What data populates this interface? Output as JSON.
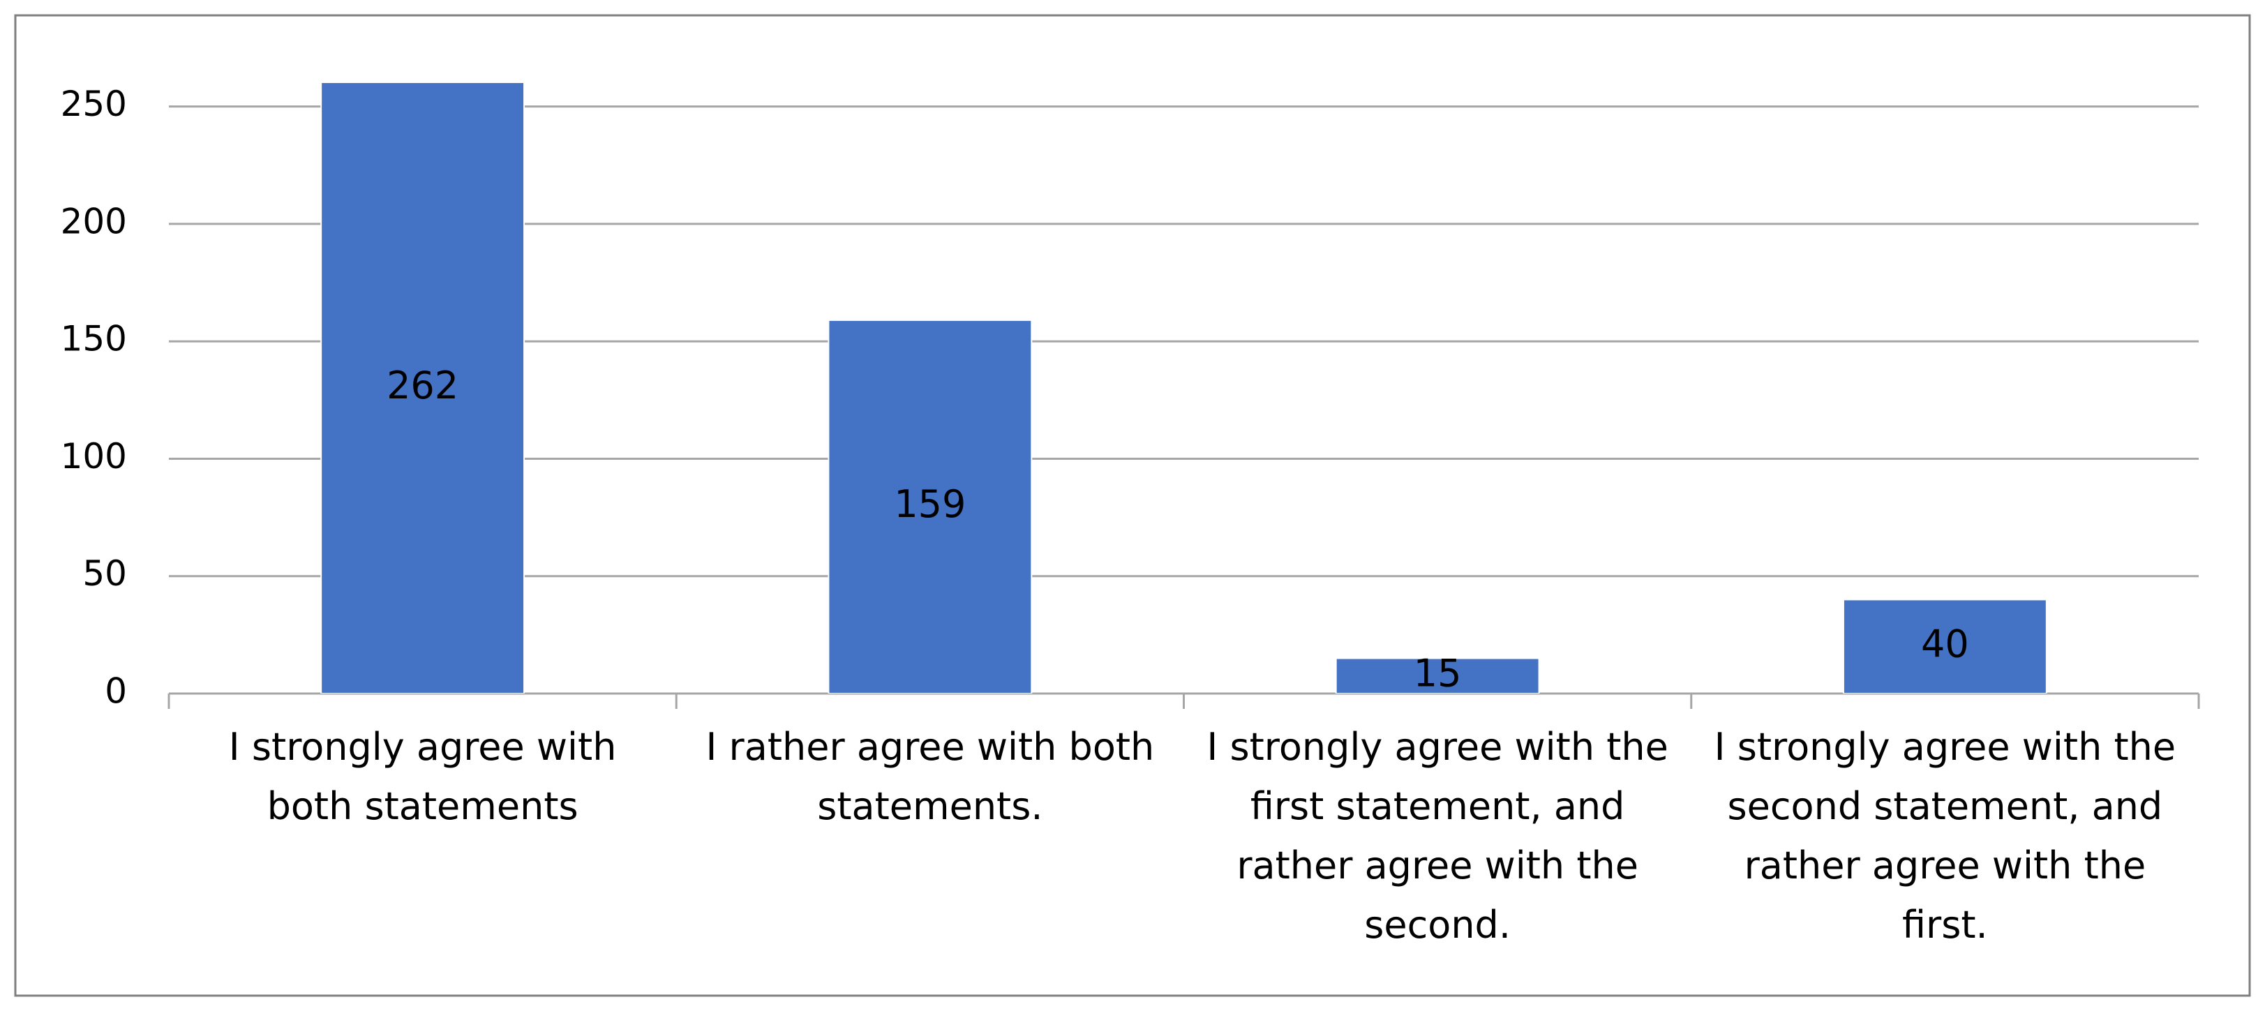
{
  "chart_data": {
    "type": "bar",
    "categories": [
      "I strongly agree with\nboth statements",
      "I rather agree with both\nstatements.",
      "I strongly agree with the\nfirst statement, and\nrather agree with the\nsecond.",
      "I strongly agree with the\nsecond statement, and\nrather agree with the\nfirst."
    ],
    "values": [
      262,
      159,
      15,
      40
    ],
    "color": "#4472c4",
    "ylim": [
      0,
      260
    ],
    "yticks": [
      0,
      50,
      100,
      150,
      200,
      250
    ],
    "grid": true
  }
}
